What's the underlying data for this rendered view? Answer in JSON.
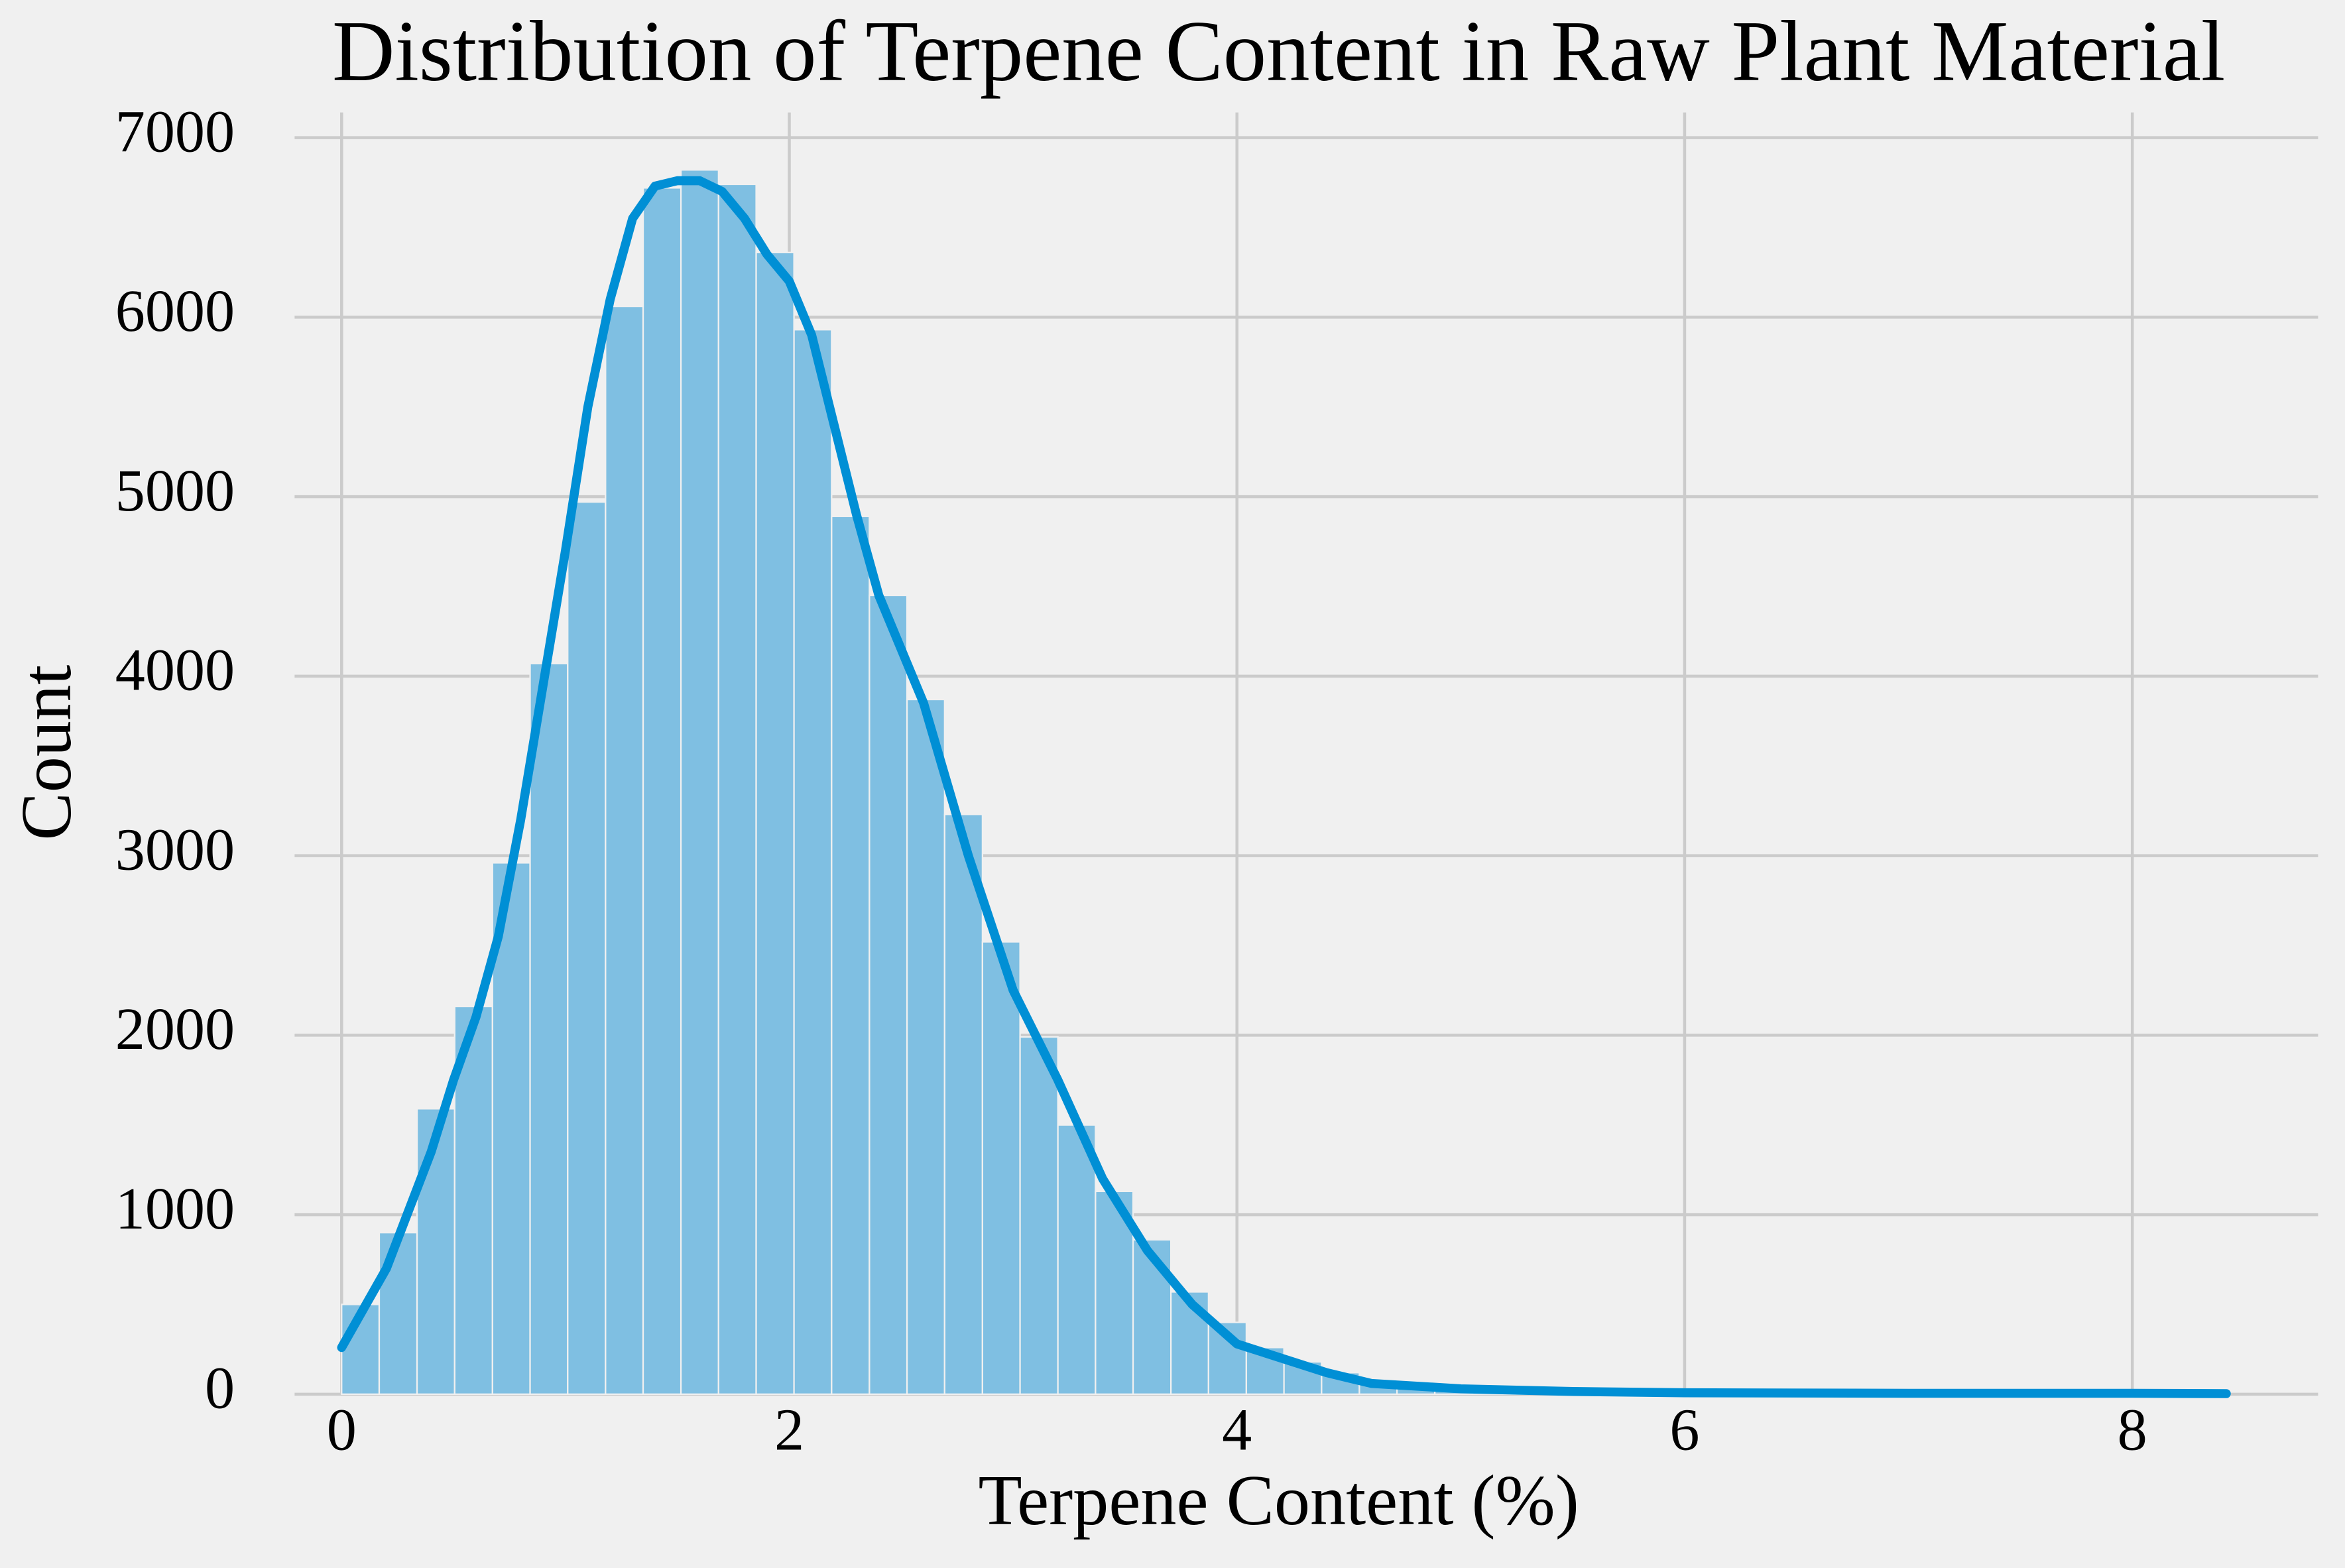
{
  "chart_data": {
    "type": "histogram",
    "title": "Distribution of Terpene Content in Raw Plant Material",
    "x_label": "Terpene Content (%)",
    "y_label": "Count",
    "bins": [
      0,
      0.168,
      0.337,
      0.505,
      0.674,
      0.842,
      1.01,
      1.179,
      1.347,
      1.516,
      1.684,
      1.852,
      2.021,
      2.189,
      2.358,
      2.526,
      2.694,
      2.863,
      3.031,
      3.2,
      3.368,
      3.536,
      3.705,
      3.873,
      4.042,
      4.21,
      4.378,
      4.547,
      4.715,
      4.884,
      5.052,
      5.22,
      5.389,
      5.557,
      5.726,
      5.894,
      6.062,
      6.231,
      6.399,
      6.568,
      6.736,
      6.904,
      7.073,
      7.241,
      7.41,
      7.578,
      7.746,
      7.915,
      8.083,
      8.252,
      8.42
    ],
    "values": [
      500,
      900,
      1590,
      2160,
      2960,
      4070,
      4970,
      6060,
      6720,
      6820,
      6740,
      6360,
      5930,
      4890,
      4450,
      3870,
      3230,
      2520,
      1990,
      1500,
      1130,
      860,
      570,
      400,
      260,
      180,
      120,
      80,
      55,
      40,
      30,
      20,
      15,
      10,
      8,
      6,
      5,
      4,
      3,
      2,
      2,
      2,
      1,
      1,
      1,
      1,
      1,
      1,
      1,
      1
    ],
    "color": "#7fbfe2",
    "kde": {
      "color": "#008fd5",
      "x": [
        0,
        0.2,
        0.4,
        0.5,
        0.6,
        0.7,
        0.8,
        0.9,
        1.0,
        1.1,
        1.2,
        1.3,
        1.4,
        1.5,
        1.6,
        1.7,
        1.8,
        1.9,
        2.0,
        2.1,
        2.2,
        2.3,
        2.4,
        2.6,
        2.8,
        3.0,
        3.2,
        3.4,
        3.6,
        3.8,
        4.0,
        4.2,
        4.4,
        4.6,
        5.0,
        5.5,
        6.0,
        7.0,
        8.0,
        8.42
      ],
      "y": [
        260,
        700,
        1350,
        1750,
        2100,
        2550,
        3200,
        3950,
        4700,
        5500,
        6100,
        6550,
        6730,
        6760,
        6760,
        6700,
        6550,
        6350,
        6200,
        5900,
        5400,
        4900,
        4450,
        3850,
        3000,
        2250,
        1750,
        1200,
        800,
        500,
        280,
        200,
        120,
        60,
        30,
        15,
        8,
        5,
        5,
        3
      ]
    },
    "xlim": [
      -0.21,
      8.83
    ],
    "ylim": [
      0,
      7140
    ],
    "xticks": [
      0,
      2,
      4,
      6,
      8
    ],
    "yticks": [
      0,
      1000,
      2000,
      3000,
      4000,
      5000,
      6000,
      7000
    ],
    "grid": true
  }
}
